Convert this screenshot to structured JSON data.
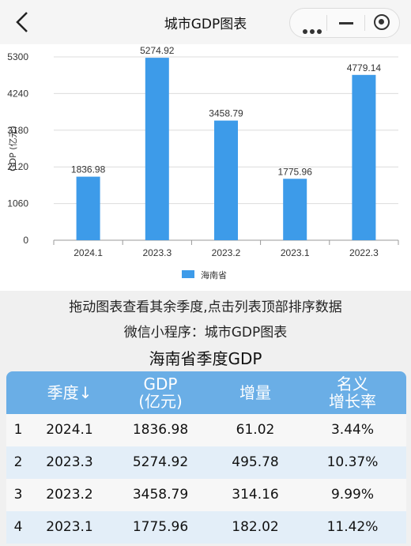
{
  "header": {
    "title": "城市GDP图表"
  },
  "chart_data": {
    "type": "bar",
    "categories": [
      "2024.1",
      "2023.3",
      "2023.2",
      "2023.1",
      "2022.3"
    ],
    "values": [
      1836.98,
      5274.92,
      3458.79,
      1775.96,
      4779.14
    ],
    "value_labels": [
      "1836.98",
      "5274.92",
      "3458.79",
      "1775.96",
      "4779.14"
    ],
    "yticks": [
      "0",
      "1060",
      "2120",
      "3180",
      "4240",
      "5300"
    ],
    "ylabel": "GDP (亿元)",
    "ylim": [
      0,
      5300
    ],
    "legend": {
      "label": "海南省",
      "position": "bottom"
    },
    "bar_color": "#3d9be9",
    "grid": true
  },
  "captions": {
    "line1": "拖动图表查看其余季度,点击列表顶部排序数据",
    "line2": "微信小程序：城市GDP图表"
  },
  "table": {
    "title": "海南省季度GDP",
    "headers": {
      "quarter": "季度↓",
      "gdp_line1": "GDP",
      "gdp_line2": "(亿元)",
      "increase": "增量",
      "growth_line1": "名义",
      "growth_line2": "增长率"
    },
    "rows": [
      {
        "index": "1",
        "quarter": "2024.1",
        "gdp": "1836.98",
        "increase": "61.02",
        "growth": "3.44%"
      },
      {
        "index": "2",
        "quarter": "2023.3",
        "gdp": "5274.92",
        "increase": "495.78",
        "growth": "10.37%"
      },
      {
        "index": "3",
        "quarter": "2023.2",
        "gdp": "3458.79",
        "increase": "314.16",
        "growth": "9.99%"
      },
      {
        "index": "4",
        "quarter": "2023.1",
        "gdp": "1775.96",
        "increase": "182.02",
        "growth": "11.42%"
      }
    ]
  },
  "colors": {
    "header_bg": "#6aaee6",
    "row_alt": "#e3eef8"
  }
}
